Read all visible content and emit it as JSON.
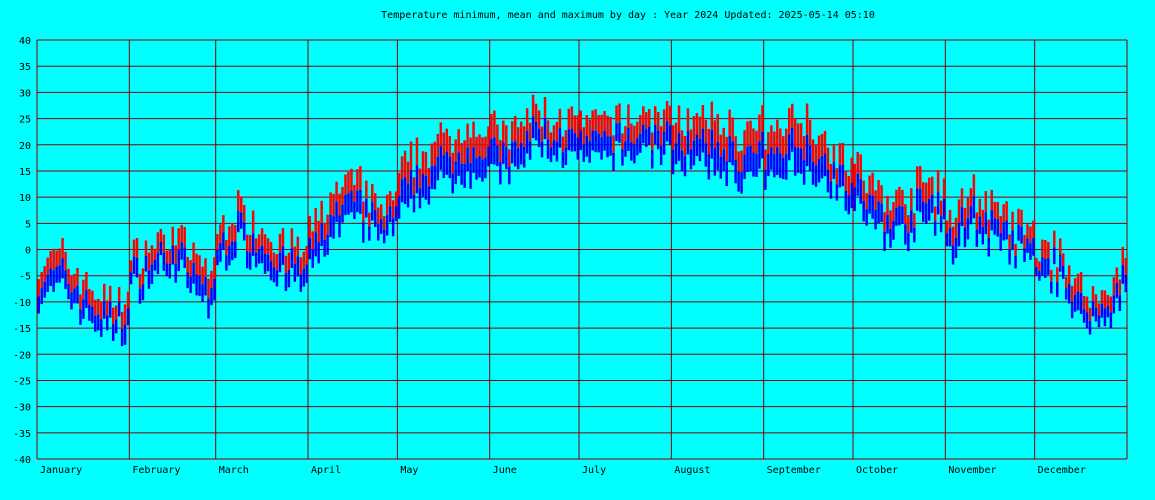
{
  "chart_data": {
    "type": "bar",
    "title": "Temperature minimum, mean and maximum by day : Year 2024   Updated: 2025-05-14 05:10",
    "xlabel": "",
    "ylabel": "",
    "ylim": [
      -40,
      40
    ],
    "yticks": [
      40,
      35,
      30,
      25,
      20,
      15,
      10,
      5,
      0,
      -5,
      -10,
      -15,
      -20,
      -25,
      -30,
      -35,
      -40
    ],
    "months": [
      "January",
      "February",
      "March",
      "April",
      "May",
      "June",
      "July",
      "August",
      "September",
      "October",
      "November",
      "December"
    ],
    "days_in_month": [
      31,
      29,
      31,
      30,
      31,
      30,
      31,
      31,
      30,
      31,
      30,
      31
    ],
    "grid": true,
    "colors": {
      "background": "#00ffff",
      "grid": "#800000",
      "minimum": "#0000ff",
      "mean": "#0000ff",
      "maximum": "#ff0000"
    },
    "series": [
      {
        "name": "Maximum",
        "monthly_profile": [
          [
            -3,
            -1,
            -6,
            -10,
            -8
          ],
          [
            -2,
            1,
            3,
            -2,
            -5
          ],
          [
            4,
            8,
            4,
            1,
            -1
          ],
          [
            3,
            10,
            14,
            8,
            10
          ],
          [
            14,
            19,
            21,
            24,
            22
          ],
          [
            23,
            22,
            27,
            25,
            24
          ],
          [
            24,
            24,
            25,
            26,
            25
          ],
          [
            26,
            24,
            25,
            22,
            24
          ],
          [
            20,
            26,
            25,
            20,
            16
          ],
          [
            16,
            11,
            9,
            13,
            12
          ],
          [
            4,
            12,
            8,
            5,
            2
          ],
          [
            0,
            0,
            -8,
            -10,
            3
          ]
        ]
      },
      {
        "name": "Minimum",
        "monthly_profile": [
          [
            -9,
            -8,
            -13,
            -16,
            -15
          ],
          [
            -8,
            -5,
            -3,
            -9,
            -12
          ],
          [
            -3,
            1,
            -3,
            -6,
            -8
          ],
          [
            -5,
            2,
            6,
            2,
            3
          ],
          [
            6,
            10,
            13,
            15,
            14
          ],
          [
            14,
            14,
            20,
            18,
            17
          ],
          [
            17,
            17,
            18,
            19,
            18
          ],
          [
            17,
            16,
            15,
            13,
            14
          ],
          [
            12,
            16,
            15,
            12,
            8
          ],
          [
            8,
            4,
            2,
            5,
            5
          ],
          [
            -2,
            4,
            1,
            -1,
            -3
          ],
          [
            -5,
            -6,
            -14,
            -15,
            -5
          ]
        ]
      }
    ]
  }
}
